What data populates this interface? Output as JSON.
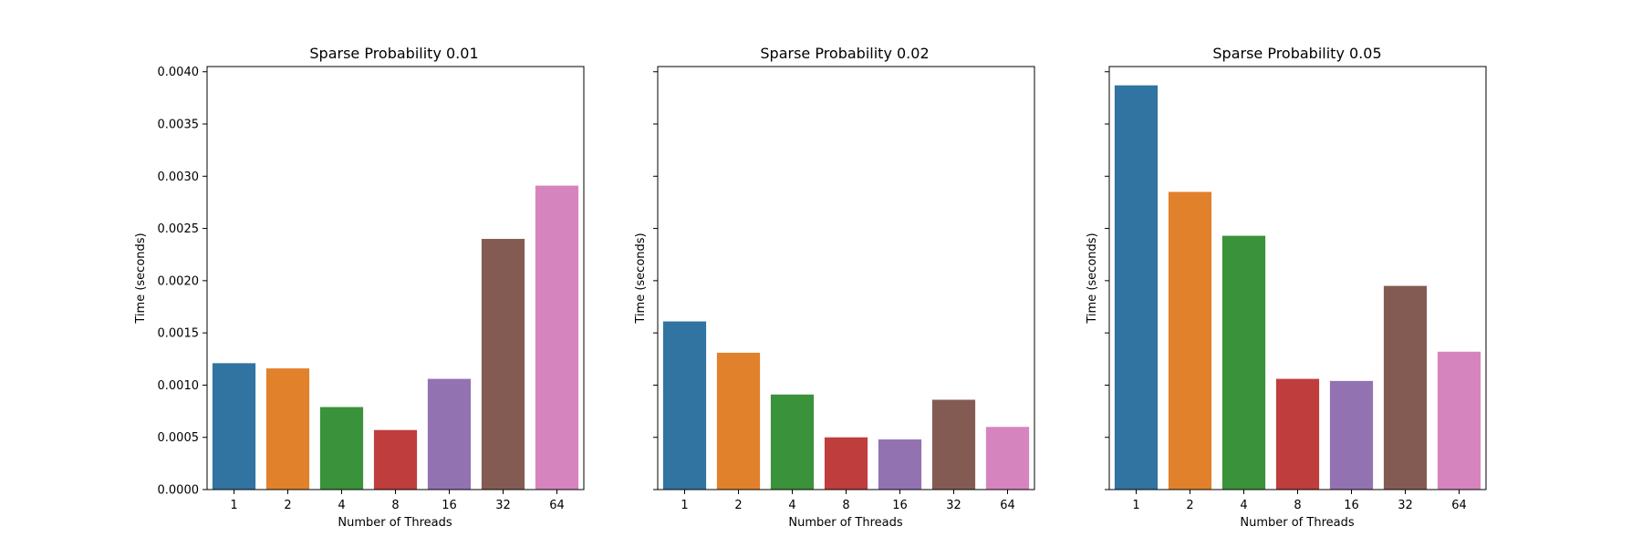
{
  "chart_data": [
    {
      "type": "bar",
      "title": "Sparse Probability 0.01",
      "xlabel": "Number of Threads",
      "ylabel": "Time (seconds)",
      "categories": [
        "1",
        "2",
        "4",
        "8",
        "16",
        "32",
        "64"
      ],
      "values": [
        0.00121,
        0.00116,
        0.00079,
        0.00057,
        0.00106,
        0.0024,
        0.00291
      ],
      "ylim": [
        0,
        0.00405
      ],
      "yticks": [
        "0.0000",
        "0.0005",
        "0.0010",
        "0.0015",
        "0.0020",
        "0.0025",
        "0.0030",
        "0.0035",
        "0.0040"
      ],
      "show_ytick_labels": true,
      "grid": false,
      "colors": [
        "#3274a1",
        "#e1812c",
        "#3a923a",
        "#c03d3e",
        "#9372b2",
        "#845b53",
        "#d684bd"
      ]
    },
    {
      "type": "bar",
      "title": "Sparse Probability 0.02",
      "xlabel": "Number of Threads",
      "ylabel": "Time (seconds)",
      "categories": [
        "1",
        "2",
        "4",
        "8",
        "16",
        "32",
        "64"
      ],
      "values": [
        0.00161,
        0.00131,
        0.00091,
        0.0005,
        0.00048,
        0.00086,
        0.0006
      ],
      "ylim": [
        0,
        0.00405
      ],
      "yticks": [
        "0.0000",
        "0.0005",
        "0.0010",
        "0.0015",
        "0.0020",
        "0.0025",
        "0.0030",
        "0.0035",
        "0.0040"
      ],
      "show_ytick_labels": false,
      "grid": false,
      "colors": [
        "#3274a1",
        "#e1812c",
        "#3a923a",
        "#c03d3e",
        "#9372b2",
        "#845b53",
        "#d684bd"
      ]
    },
    {
      "type": "bar",
      "title": "Sparse Probability 0.05",
      "xlabel": "Number of Threads",
      "ylabel": "Time (seconds)",
      "categories": [
        "1",
        "2",
        "4",
        "8",
        "16",
        "32",
        "64"
      ],
      "values": [
        0.00387,
        0.00285,
        0.00243,
        0.00106,
        0.00104,
        0.00195,
        0.00132
      ],
      "ylim": [
        0,
        0.00405
      ],
      "yticks": [
        "0.0000",
        "0.0005",
        "0.0010",
        "0.0015",
        "0.0020",
        "0.0025",
        "0.0030",
        "0.0035",
        "0.0040"
      ],
      "show_ytick_labels": false,
      "grid": false,
      "colors": [
        "#3274a1",
        "#e1812c",
        "#3a923a",
        "#c03d3e",
        "#9372b2",
        "#845b53",
        "#d684bd"
      ]
    }
  ]
}
